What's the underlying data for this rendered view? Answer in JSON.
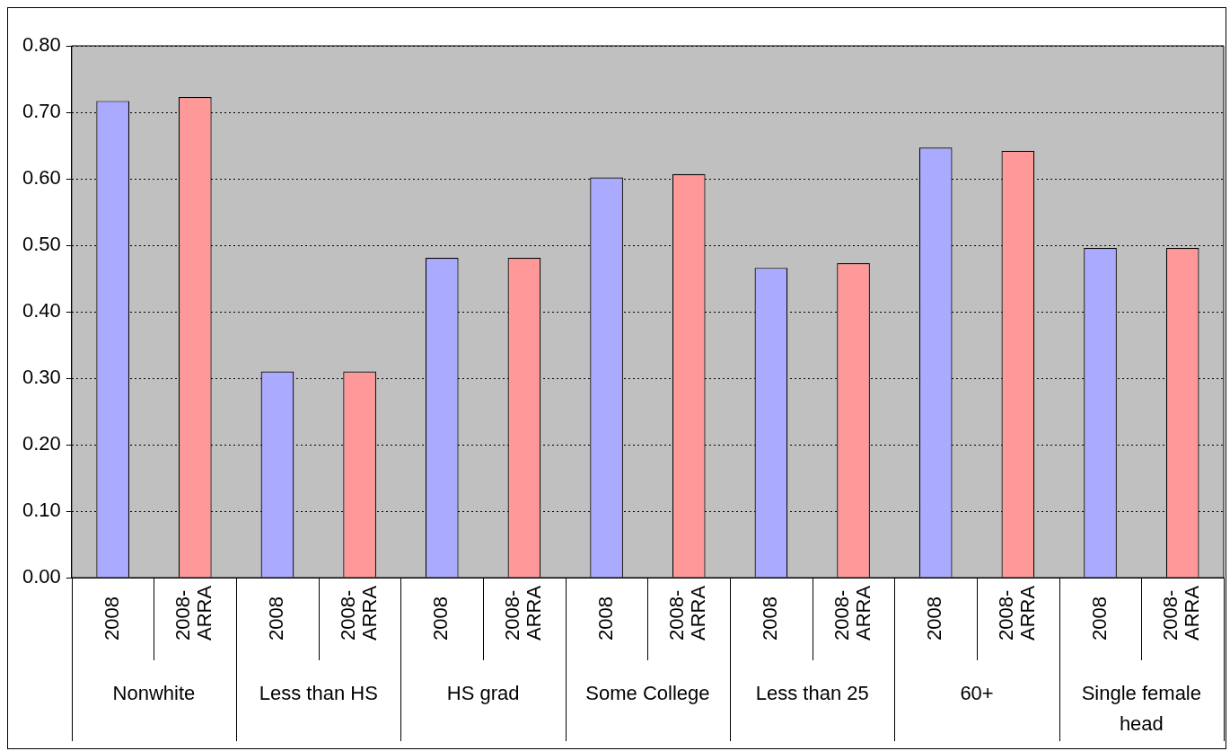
{
  "chart_data": {
    "type": "bar",
    "categories": [
      "Nonwhite",
      "Less than HS",
      "HS grad",
      "Some College",
      "Less than 25",
      "60+",
      "Single female head"
    ],
    "series": [
      {
        "name": "2008",
        "color": "#aaaaff",
        "values": [
          0.717,
          0.31,
          0.481,
          0.602,
          0.466,
          0.647,
          0.496
        ]
      },
      {
        "name": "2008-ARRA",
        "color": "#ff9999",
        "values": [
          0.723,
          0.31,
          0.481,
          0.607,
          0.473,
          0.642,
          0.496
        ]
      }
    ],
    "ylim": [
      0,
      0.8
    ],
    "yticks": [
      {
        "value": 0,
        "label": "0.00"
      },
      {
        "value": 0.1,
        "label": "0.10"
      },
      {
        "value": 0.2,
        "label": "0.20"
      },
      {
        "value": 0.3,
        "label": "0.30"
      },
      {
        "value": 0.4,
        "label": "0.40"
      },
      {
        "value": 0.5,
        "label": "0.50"
      },
      {
        "value": 0.6,
        "label": "0.60"
      },
      {
        "value": 0.7,
        "label": "0.70"
      },
      {
        "value": 0.8,
        "label": "0.80"
      }
    ],
    "grid": "y",
    "legend": false
  }
}
